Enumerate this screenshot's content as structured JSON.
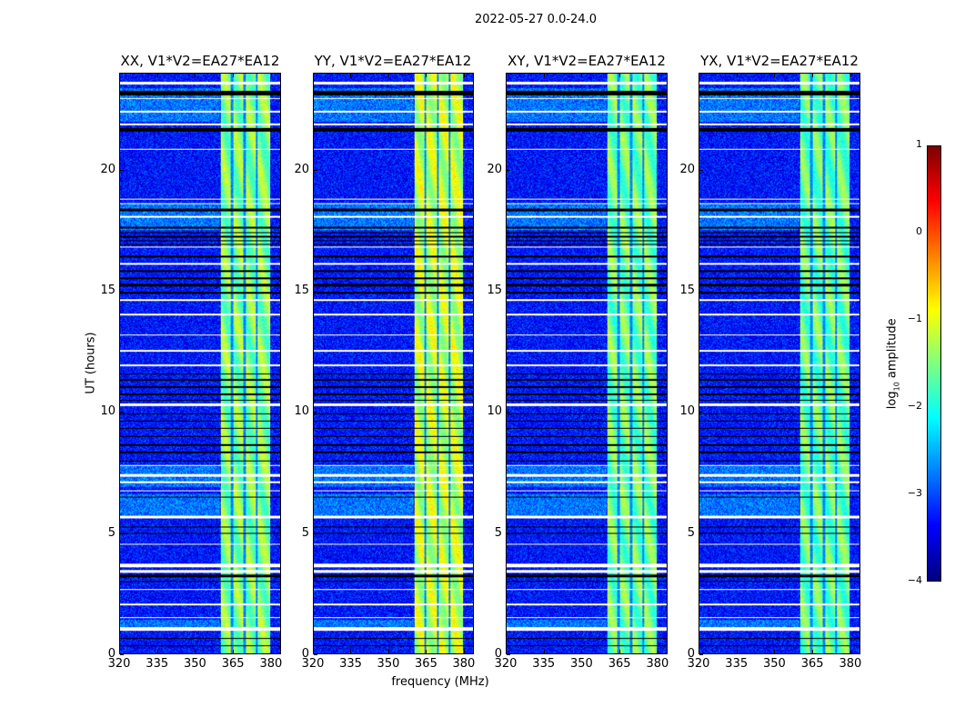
{
  "chart_data": {
    "type": "heatmap",
    "suptitle": "2022-05-27 0.0-24.0",
    "xlabel": "frequency (MHz)",
    "ylabel": "UT (hours)",
    "xlim": [
      320,
      384
    ],
    "ylim": [
      0,
      24
    ],
    "xticks": [
      320,
      335,
      350,
      365,
      380
    ],
    "yticks": [
      0,
      5,
      10,
      15,
      20
    ],
    "colorbar": {
      "label_prefix": "log",
      "label_sub": "10",
      "label_suffix": " amplitude",
      "clim": [
        -4,
        1
      ],
      "ticks": [
        1,
        0,
        -1,
        -2,
        -3,
        -4
      ],
      "colormap": "jet"
    },
    "background_level": -3.3,
    "signal_band_mhz": [
      360.4,
      379.9
    ],
    "signal_gaps_mhz": [
      364.8,
      369.8,
      374.6
    ],
    "elevated_background_hours": [
      [
        5.7,
        6.6
      ],
      [
        22.0,
        23.4
      ],
      [
        1.1,
        1.4
      ],
      [
        6.9,
        7.8
      ],
      [
        17.5,
        18.6
      ]
    ],
    "flagged_white_hours": [
      [
        23.55,
        23.65
      ],
      [
        22.95,
        23.0
      ],
      [
        22.4,
        22.45
      ],
      [
        21.85,
        21.95
      ],
      [
        20.85,
        20.9
      ],
      [
        18.78,
        18.82
      ],
      [
        18.6,
        18.64
      ],
      [
        18.05,
        18.1
      ],
      [
        16.8,
        16.85
      ],
      [
        16.1,
        16.15
      ],
      [
        14.6,
        14.65
      ],
      [
        14.0,
        14.05
      ],
      [
        13.15,
        13.2
      ],
      [
        12.5,
        12.55
      ],
      [
        11.9,
        11.95
      ],
      [
        10.25,
        10.35
      ],
      [
        7.75,
        7.8
      ],
      [
        7.3,
        7.42
      ],
      [
        7.05,
        7.12
      ],
      [
        6.7,
        6.75
      ],
      [
        5.6,
        5.7
      ],
      [
        4.5,
        4.55
      ],
      [
        3.55,
        3.7
      ],
      [
        3.35,
        3.45
      ],
      [
        2.63,
        2.68
      ],
      [
        2.0,
        2.05
      ],
      [
        1.45,
        1.5
      ],
      [
        0.95,
        1.1
      ]
    ],
    "flagged_black_hours": [
      [
        23.1,
        23.3
      ],
      [
        21.6,
        21.75
      ],
      [
        18.3,
        18.4
      ],
      [
        17.6,
        17.65
      ],
      [
        17.4,
        17.45
      ],
      [
        17.2,
        17.3
      ],
      [
        17.05,
        17.1
      ],
      [
        16.9,
        16.95
      ],
      [
        16.4,
        16.45
      ],
      [
        15.8,
        15.85
      ],
      [
        15.5,
        15.55
      ],
      [
        15.2,
        15.3
      ],
      [
        14.9,
        14.95
      ],
      [
        11.55,
        11.6
      ],
      [
        11.3,
        11.35
      ],
      [
        11.0,
        11.05
      ],
      [
        10.7,
        10.75
      ],
      [
        10.45,
        10.5
      ],
      [
        9.9,
        9.95
      ],
      [
        9.6,
        9.65
      ],
      [
        9.3,
        9.35
      ],
      [
        8.95,
        9.0
      ],
      [
        8.6,
        8.65
      ],
      [
        8.3,
        8.35
      ],
      [
        7.95,
        8.0
      ],
      [
        6.45,
        6.5
      ],
      [
        5.2,
        5.25
      ],
      [
        4.95,
        5.0
      ],
      [
        3.15,
        3.25
      ],
      [
        2.95,
        3.0
      ],
      [
        0.6,
        0.65
      ],
      [
        0.3,
        0.35
      ]
    ],
    "panels": [
      {
        "title": "XX, V1*V2=EA27*EA12",
        "band_level": -1.5
      },
      {
        "title": "YY, V1*V2=EA27*EA12",
        "band_level": -1.2
      },
      {
        "title": "XY, V1*V2=EA27*EA12",
        "band_level": -1.6
      },
      {
        "title": "YX, V1*V2=EA27*EA12",
        "band_level": -1.65
      }
    ]
  }
}
